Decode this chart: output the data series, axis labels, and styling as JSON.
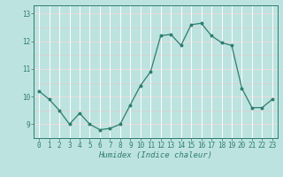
{
  "x": [
    0,
    1,
    2,
    3,
    4,
    5,
    6,
    7,
    8,
    9,
    10,
    11,
    12,
    13,
    14,
    15,
    16,
    17,
    18,
    19,
    20,
    21,
    22,
    23
  ],
  "y": [
    10.2,
    9.9,
    9.5,
    9.0,
    9.4,
    9.0,
    8.8,
    8.85,
    9.0,
    9.7,
    10.4,
    10.9,
    12.2,
    12.25,
    11.85,
    12.6,
    12.65,
    12.2,
    11.95,
    11.85,
    10.3,
    9.6,
    9.6,
    9.9
  ],
  "line_color": "#2e7d6e",
  "marker_color": "#2e7d6e",
  "bg_color": "#bde3e0",
  "grid_color": "#d8f0ee",
  "tick_color": "#2e7d6e",
  "xlabel": "Humidex (Indice chaleur)",
  "xlabel_color": "#2e7d6e",
  "axis_color": "#2e7d6e",
  "ylim": [
    8.5,
    13.3
  ],
  "xlim": [
    -0.5,
    23.5
  ],
  "yticks": [
    9,
    10,
    11,
    12,
    13
  ],
  "xticks": [
    0,
    1,
    2,
    3,
    4,
    5,
    6,
    7,
    8,
    9,
    10,
    11,
    12,
    13,
    14,
    15,
    16,
    17,
    18,
    19,
    20,
    21,
    22,
    23
  ],
  "xtick_labels": [
    "0",
    "1",
    "2",
    "3",
    "4",
    "5",
    "6",
    "7",
    "8",
    "9",
    "10",
    "11",
    "12",
    "13",
    "14",
    "15",
    "16",
    "17",
    "18",
    "19",
    "20",
    "21",
    "22",
    "23"
  ],
  "fontsize_ticks": 5.5,
  "fontsize_xlabel": 6.5
}
